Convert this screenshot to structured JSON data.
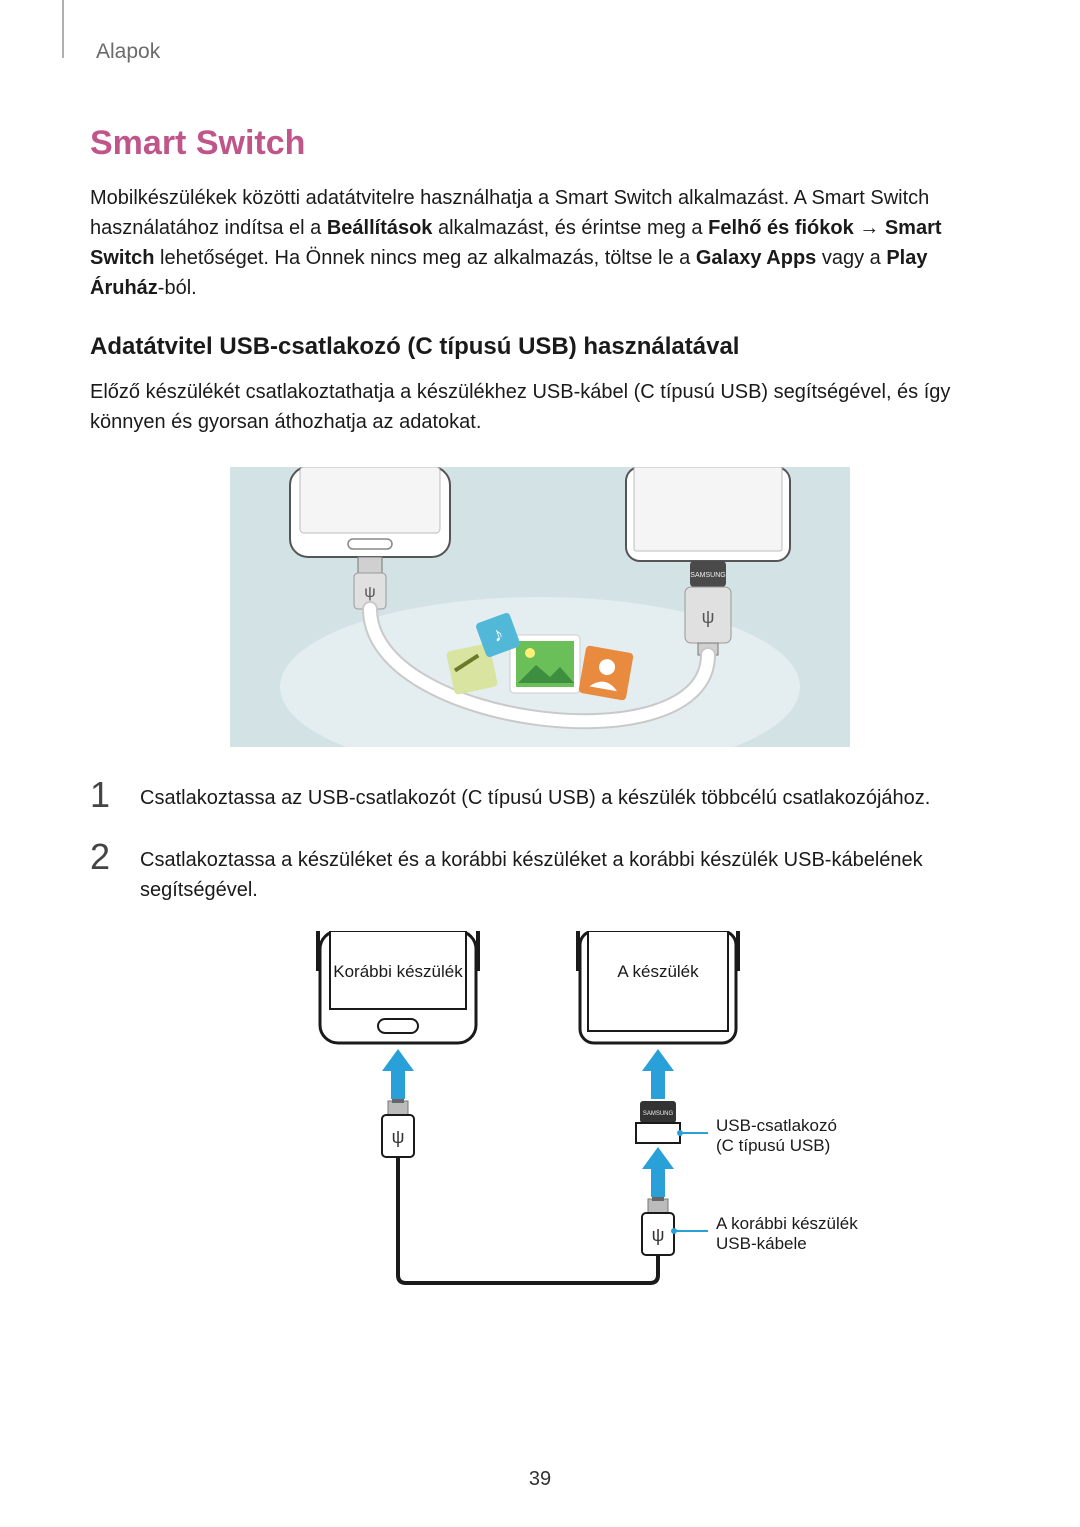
{
  "breadcrumb": "Alapok",
  "title": "Smart Switch",
  "intro": {
    "part1": "Mobilkészülékek közötti adatátvitelre használhatja a Smart Switch alkalmazást. A Smart Switch használatához indítsa el a ",
    "bold1": "Beállítások",
    "part2": " alkalmazást, és érintse meg a ",
    "bold2": "Felhő és fiókok",
    "arrow": " → ",
    "bold3": "Smart Switch",
    "part3": " lehetőséget. Ha Önnek nincs meg az alkalmazás, töltse le a ",
    "bold4": "Galaxy Apps",
    "part4": " vagy a ",
    "bold5": "Play Áruház",
    "part5": "-ból."
  },
  "subhead": "Adatátvitel USB-csatlakozó (C típusú USB) használatával",
  "subpara": "Előző készülékét csatlakoztathatja a készülékhez USB-kábel (C típusú USB) segítségével, és így könnyen és gyorsan áthozhatja az adatokat.",
  "steps": [
    "Csatlakoztassa az USB-csatlakozót (C típusú USB) a készülék többcélú csatlakozójához.",
    "Csatlakoztassa a készüléket és a korábbi készüléket a korábbi készülék USB-kábelének segítségével."
  ],
  "fig1": {
    "bg": "#d2e2e5",
    "bg2": "#e8f0f2",
    "phone_fill": "#ffffff",
    "phone_stroke": "#555555",
    "cable": "#ffffff",
    "cable_stroke": "#c9c9c9",
    "adapter_fill": "#4a4a4a",
    "usb_body": "#d0d0d0",
    "icon_music": "#52b8d8",
    "icon_photo": "#6bbf59",
    "icon_contact": "#e88b3e",
    "icon_note": "#d8e4a0"
  },
  "fig2": {
    "labels": {
      "prev": "Korábbi készülék",
      "this": "A készülék",
      "connector1": "USB-csatlakozó",
      "connector1b": "(C típusú USB)",
      "cable1": "A korábbi készülék",
      "cable1b": "USB-kábele"
    },
    "phone_stroke": "#1a1a1a",
    "arrow_fill": "#2aa0d8",
    "leader": "#2aa0d8",
    "usb_body": "#555555",
    "adapter": "#333333",
    "text": "#1a1a1a",
    "text_size": 17
  },
  "page_number": "39"
}
